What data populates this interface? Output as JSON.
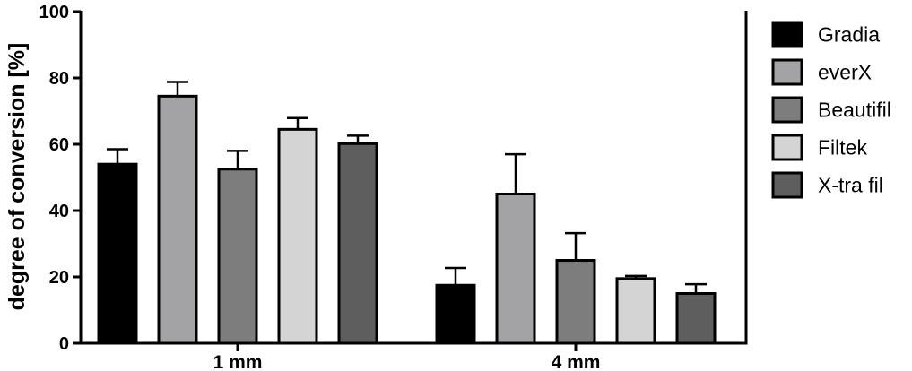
{
  "chart_data": {
    "type": "bar",
    "title": "",
    "xlabel": "",
    "ylabel": "degree of conversion [%]",
    "ylim": [
      0,
      100
    ],
    "yticks": [
      "0",
      "20",
      "40",
      "60",
      "80",
      "100"
    ],
    "categories": [
      "1 mm",
      "4 mm"
    ],
    "grid": false,
    "legend_position": "right",
    "error_bars": true,
    "series": [
      {
        "name": "Gradia",
        "color": "#000000",
        "values": [
          54,
          17.5
        ],
        "errors": [
          4.5,
          5.2
        ]
      },
      {
        "name": "everX",
        "color": "#a3a3a6",
        "values": [
          74.5,
          45
        ],
        "errors": [
          4.3,
          12
        ]
      },
      {
        "name": "Beautifil",
        "color": "#7d7d7d",
        "values": [
          52.5,
          25
        ],
        "errors": [
          5.5,
          8.2
        ]
      },
      {
        "name": "Filtek",
        "color": "#d4d4d4",
        "values": [
          64.5,
          19.5
        ],
        "errors": [
          3.4,
          0.8
        ]
      },
      {
        "name": "X-tra fil",
        "color": "#5e5e5e",
        "values": [
          60.2,
          15
        ],
        "errors": [
          2.4,
          2.8
        ]
      }
    ]
  }
}
